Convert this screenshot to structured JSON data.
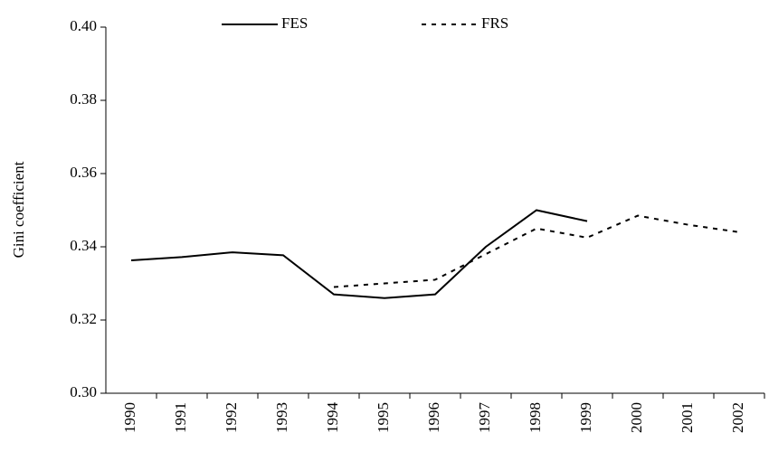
{
  "chart_data": {
    "type": "line",
    "y_label": "Gini coefficient",
    "categories": [
      "1990",
      "1991",
      "1992",
      "1993",
      "1994",
      "1995",
      "1996",
      "1997",
      "1998",
      "1999",
      "2000",
      "2001",
      "2002"
    ],
    "series": [
      {
        "name": "FES",
        "color": "#000000",
        "line_style": "solid",
        "values": [
          0.3363,
          0.3372,
          0.3385,
          0.3377,
          0.327,
          0.326,
          0.327,
          0.34,
          0.35,
          0.347,
          null,
          null,
          null
        ]
      },
      {
        "name": "FRS",
        "color": "#000000",
        "line_style": "dashed",
        "values": [
          null,
          null,
          null,
          null,
          0.329,
          0.33,
          0.331,
          0.338,
          0.345,
          0.3425,
          0.3485,
          0.346,
          0.344
        ]
      }
    ],
    "ylim": [
      0.3,
      0.4
    ],
    "yticks": [
      {
        "value": 0.3,
        "label": "0.30"
      },
      0.32,
      0.34,
      0.36,
      0.38,
      {
        "value": 0.4,
        "label": "0.40"
      }
    ],
    "grid": false,
    "legend": "top"
  }
}
